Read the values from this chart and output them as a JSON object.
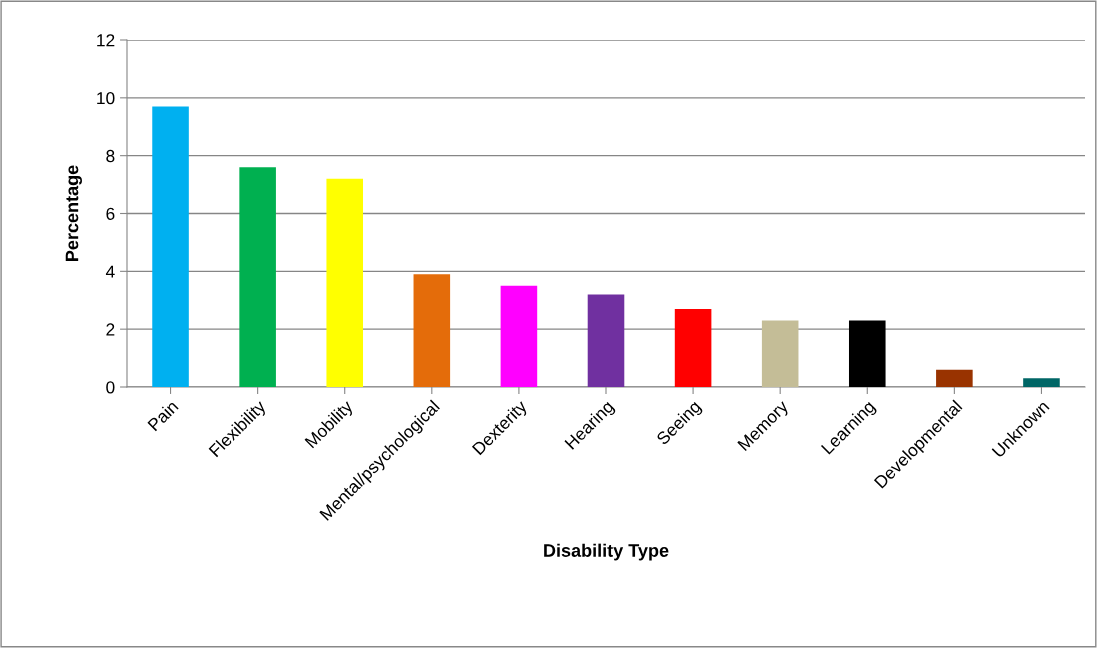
{
  "chart_data": {
    "type": "bar",
    "xlabel": "Disability Type",
    "ylabel": "Percentage",
    "categories": [
      "Pain",
      "Flexibility",
      "Mobility",
      "Mental/psychological",
      "Dexterity",
      "Hearing",
      "Seeing",
      "Memory",
      "Learning",
      "Developmental",
      "Unknown"
    ],
    "values": [
      9.7,
      7.6,
      7.2,
      3.9,
      3.5,
      3.2,
      2.7,
      2.3,
      2.3,
      0.6,
      0.3
    ],
    "colors": [
      "#00b0f0",
      "#00b050",
      "#ffff00",
      "#e46c0a",
      "#ff00ff",
      "#7030a0",
      "#ff0000",
      "#c4bd97",
      "#000000",
      "#993300",
      "#006666"
    ],
    "ylim": [
      0,
      12
    ],
    "yticks": [
      0,
      2,
      4,
      6,
      8,
      10,
      12
    ],
    "grid": "y",
    "legend": false
  }
}
